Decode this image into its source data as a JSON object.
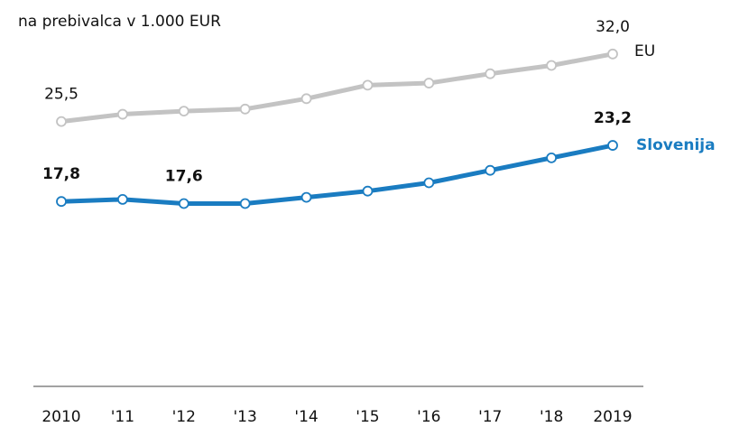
{
  "chart_data": {
    "type": "line",
    "title": "na prebivalca v 1.000 EUR",
    "categories": [
      "2010",
      "'11",
      "'12",
      "'13",
      "'14",
      "'15",
      "'16",
      "'17",
      "'18",
      "2019"
    ],
    "series": [
      {
        "name": "EU",
        "color": "#c3c3c3",
        "values": [
          25.5,
          26.2,
          26.5,
          26.7,
          27.7,
          29.0,
          29.2,
          30.1,
          30.9,
          32.0
        ],
        "value_labels": [
          "25,5",
          null,
          null,
          null,
          null,
          null,
          null,
          null,
          null,
          "32,0"
        ]
      },
      {
        "name": "Slovenija",
        "color": "#1a7cc1",
        "values": [
          17.8,
          18.0,
          17.6,
          17.6,
          18.2,
          18.8,
          19.6,
          20.8,
          22.0,
          23.2
        ],
        "value_labels": [
          "17,8",
          null,
          "17,6",
          null,
          null,
          null,
          null,
          null,
          null,
          "23,2"
        ]
      }
    ],
    "ylim": [
      0,
      37.2
    ]
  }
}
